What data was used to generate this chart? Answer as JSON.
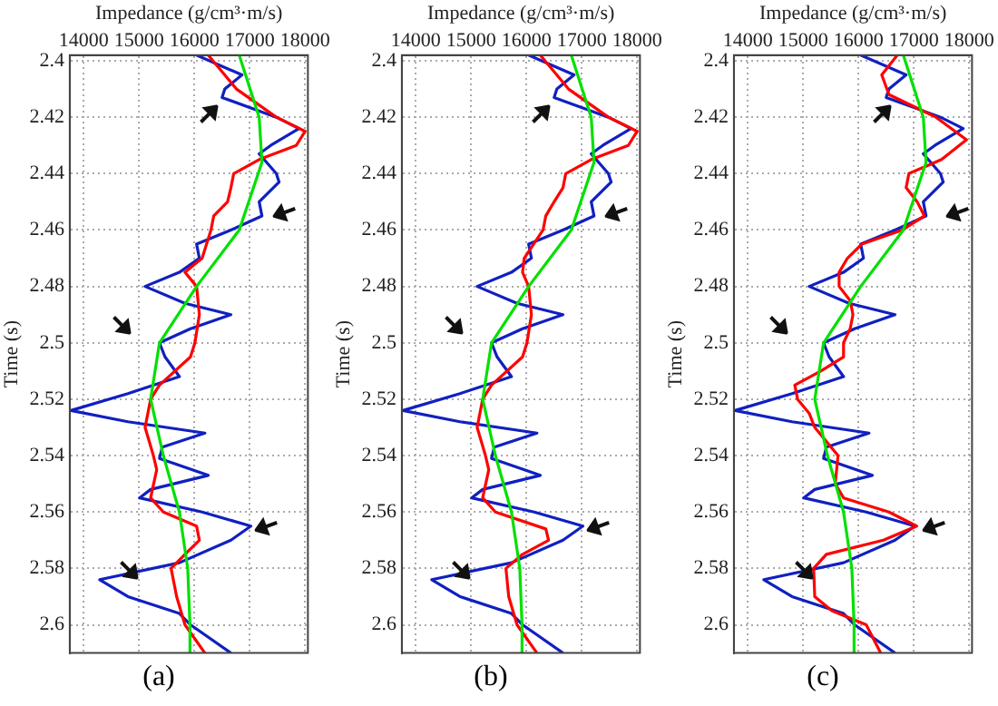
{
  "chart_data": [
    {
      "type": "line",
      "title": "(a)",
      "xlabel": "Impedance (g/cm³·m/s)",
      "ylabel": "Time (s)",
      "xlim": [
        13750,
        18050
      ],
      "xticks": [
        14000,
        15000,
        16000,
        17000,
        18000
      ],
      "ylim": [
        2.61,
        2.398
      ],
      "yticks": [
        2.4,
        2.42,
        2.44,
        2.46,
        2.48,
        2.5,
        2.52,
        2.54,
        2.56,
        2.58,
        2.6
      ],
      "grid": true,
      "marker": "none",
      "line_style": "solid",
      "series": [
        {
          "color": "#00e000",
          "x": [
            16810,
            17170,
            17220,
            16810,
            16040,
            15370,
            15210,
            15440,
            15730,
            15880,
            15920,
            15920
          ],
          "values": [
            2.398,
            2.42,
            2.436,
            2.46,
            2.48,
            2.5,
            2.52,
            2.54,
            2.56,
            2.58,
            2.6,
            2.61
          ]
        },
        {
          "color": "#ff0000",
          "x": [
            16250,
            16760,
            17480,
            18000,
            17840,
            17170,
            16710,
            16660,
            16600,
            16350,
            16300,
            16140,
            15830,
            16040,
            16090,
            16010,
            15930,
            15370,
            15210,
            15110,
            15260,
            15320,
            15210,
            15440,
            16040,
            16090,
            15830,
            15580,
            15680,
            15830,
            16190
          ],
          "values": [
            2.398,
            2.41,
            2.42,
            2.425,
            2.43,
            2.435,
            2.44,
            2.445,
            2.45,
            2.455,
            2.46,
            2.47,
            2.475,
            2.48,
            2.49,
            2.5,
            2.505,
            2.515,
            2.52,
            2.53,
            2.54,
            2.545,
            2.555,
            2.56,
            2.565,
            2.57,
            2.575,
            2.58,
            2.59,
            2.6,
            2.61
          ]
        },
        {
          "color": "#1020c0",
          "x": [
            16040,
            16860,
            16550,
            16500,
            17480,
            17890,
            17380,
            17170,
            17480,
            17530,
            17170,
            17220,
            16660,
            16040,
            16090,
            15730,
            15110,
            15830,
            16660,
            15930,
            15370,
            15470,
            15730,
            14800,
            13770,
            14800,
            16190,
            15420,
            15370,
            16250,
            15210,
            15010,
            16140,
            17020,
            16660,
            15730,
            14290,
            14800,
            15730,
            15930,
            16660
          ],
          "values": [
            2.398,
            2.405,
            2.41,
            2.413,
            2.42,
            2.424,
            2.43,
            2.433,
            2.44,
            2.443,
            2.45,
            2.455,
            2.46,
            2.465,
            2.47,
            2.475,
            2.48,
            2.486,
            2.49,
            2.495,
            2.5,
            2.505,
            2.512,
            2.518,
            2.524,
            2.528,
            2.532,
            2.537,
            2.541,
            2.547,
            2.552,
            2.555,
            2.56,
            2.565,
            2.57,
            2.578,
            2.584,
            2.59,
            2.596,
            2.6,
            2.61
          ]
        }
      ]
    },
    {
      "type": "line",
      "title": "(b)",
      "xlabel": "Impedance (g/cm³·m/s)",
      "ylabel": "Time (s)",
      "xlim": [
        13750,
        18050
      ],
      "xticks": [
        14000,
        15000,
        16000,
        17000,
        18000
      ],
      "ylim": [
        2.61,
        2.398
      ],
      "yticks": [
        2.4,
        2.42,
        2.44,
        2.46,
        2.48,
        2.5,
        2.52,
        2.54,
        2.56,
        2.58,
        2.6
      ],
      "grid": true,
      "marker": "none",
      "line_style": "solid",
      "series": [
        {
          "color": "#00e000",
          "x": [
            16810,
            17170,
            17220,
            16810,
            16040,
            15370,
            15210,
            15440,
            15730,
            15880,
            15920,
            15920
          ],
          "values": [
            2.398,
            2.42,
            2.436,
            2.46,
            2.48,
            2.5,
            2.52,
            2.54,
            2.56,
            2.58,
            2.6,
            2.61
          ]
        },
        {
          "color": "#ff0000",
          "x": [
            16250,
            16760,
            17480,
            18000,
            17840,
            17170,
            16710,
            16660,
            16500,
            16350,
            16300,
            15960,
            15930,
            16040,
            16090,
            16010,
            15930,
            15370,
            15210,
            15110,
            15260,
            15320,
            15210,
            15440,
            16350,
            16400,
            15930,
            15630,
            15680,
            15830,
            16190
          ],
          "values": [
            2.398,
            2.41,
            2.42,
            2.425,
            2.43,
            2.435,
            2.44,
            2.445,
            2.45,
            2.455,
            2.46,
            2.47,
            2.475,
            2.48,
            2.49,
            2.5,
            2.505,
            2.515,
            2.52,
            2.53,
            2.54,
            2.545,
            2.555,
            2.56,
            2.566,
            2.57,
            2.575,
            2.58,
            2.59,
            2.6,
            2.61
          ]
        },
        {
          "color": "#1020c0",
          "x": [
            16040,
            16860,
            16550,
            16500,
            17480,
            17890,
            17380,
            17170,
            17480,
            17530,
            17170,
            17220,
            16660,
            16040,
            16090,
            15730,
            15110,
            15830,
            16660,
            15930,
            15370,
            15470,
            15730,
            14800,
            13770,
            14800,
            16190,
            15420,
            15370,
            16250,
            15210,
            15010,
            16140,
            17020,
            16660,
            15730,
            14290,
            14800,
            15730,
            15930,
            16660
          ],
          "values": [
            2.398,
            2.405,
            2.41,
            2.413,
            2.42,
            2.424,
            2.43,
            2.433,
            2.44,
            2.443,
            2.45,
            2.455,
            2.46,
            2.465,
            2.47,
            2.475,
            2.48,
            2.486,
            2.49,
            2.495,
            2.5,
            2.505,
            2.512,
            2.518,
            2.524,
            2.528,
            2.532,
            2.537,
            2.541,
            2.547,
            2.552,
            2.555,
            2.56,
            2.565,
            2.57,
            2.578,
            2.584,
            2.59,
            2.596,
            2.6,
            2.61
          ]
        }
      ]
    },
    {
      "type": "line",
      "title": "(c)",
      "xlabel": "Impedance (g/cm³·m/s)",
      "ylabel": "Time (s)",
      "xlim": [
        13750,
        18050
      ],
      "xticks": [
        14000,
        15000,
        16000,
        17000,
        18000
      ],
      "ylim": [
        2.61,
        2.398
      ],
      "yticks": [
        2.4,
        2.42,
        2.44,
        2.46,
        2.48,
        2.5,
        2.52,
        2.54,
        2.56,
        2.58,
        2.6
      ],
      "grid": true,
      "marker": "none",
      "line_style": "solid",
      "series": [
        {
          "color": "#00e000",
          "x": [
            16810,
            17170,
            17220,
            16810,
            16040,
            15370,
            15210,
            15440,
            15730,
            15880,
            15920,
            15920
          ],
          "values": [
            2.398,
            2.42,
            2.436,
            2.46,
            2.48,
            2.5,
            2.52,
            2.54,
            2.56,
            2.58,
            2.6,
            2.61
          ]
        },
        {
          "color": "#ff0000",
          "x": [
            16700,
            16420,
            16550,
            17400,
            17950,
            17500,
            16910,
            16860,
            17060,
            17190,
            16790,
            16060,
            15800,
            15650,
            15650,
            15850,
            15900,
            15850,
            15730,
            15730,
            15320,
            14850,
            14900,
            15110,
            15210,
            15630,
            15580,
            15730,
            16550,
            17050,
            16450,
            15420,
            15190,
            15210,
            15520,
            16140,
            16400
          ],
          "values": [
            2.398,
            2.405,
            2.412,
            2.42,
            2.428,
            2.435,
            2.44,
            2.445,
            2.45,
            2.455,
            2.46,
            2.465,
            2.47,
            2.475,
            2.48,
            2.485,
            2.49,
            2.495,
            2.5,
            2.505,
            2.51,
            2.515,
            2.52,
            2.525,
            2.53,
            2.54,
            2.55,
            2.555,
            2.56,
            2.565,
            2.57,
            2.575,
            2.58,
            2.59,
            2.595,
            2.6,
            2.61
          ]
        },
        {
          "color": "#1020c0",
          "x": [
            16040,
            16860,
            16550,
            16500,
            17480,
            17890,
            17380,
            17170,
            17480,
            17530,
            17170,
            17220,
            16660,
            16040,
            16090,
            15730,
            15110,
            15830,
            16660,
            15930,
            15370,
            15470,
            15730,
            14800,
            13770,
            14800,
            16190,
            15420,
            15370,
            16250,
            15210,
            15010,
            16140,
            17020,
            16660,
            15730,
            14290,
            14800,
            15730,
            15930,
            16660
          ],
          "values": [
            2.398,
            2.405,
            2.41,
            2.413,
            2.42,
            2.424,
            2.43,
            2.433,
            2.44,
            2.443,
            2.45,
            2.455,
            2.46,
            2.465,
            2.47,
            2.475,
            2.48,
            2.486,
            2.49,
            2.495,
            2.5,
            2.505,
            2.512,
            2.518,
            2.524,
            2.528,
            2.532,
            2.537,
            2.541,
            2.547,
            2.552,
            2.555,
            2.56,
            2.565,
            2.57,
            2.578,
            2.584,
            2.59,
            2.596,
            2.6,
            2.61
          ]
        }
      ]
    }
  ]
}
